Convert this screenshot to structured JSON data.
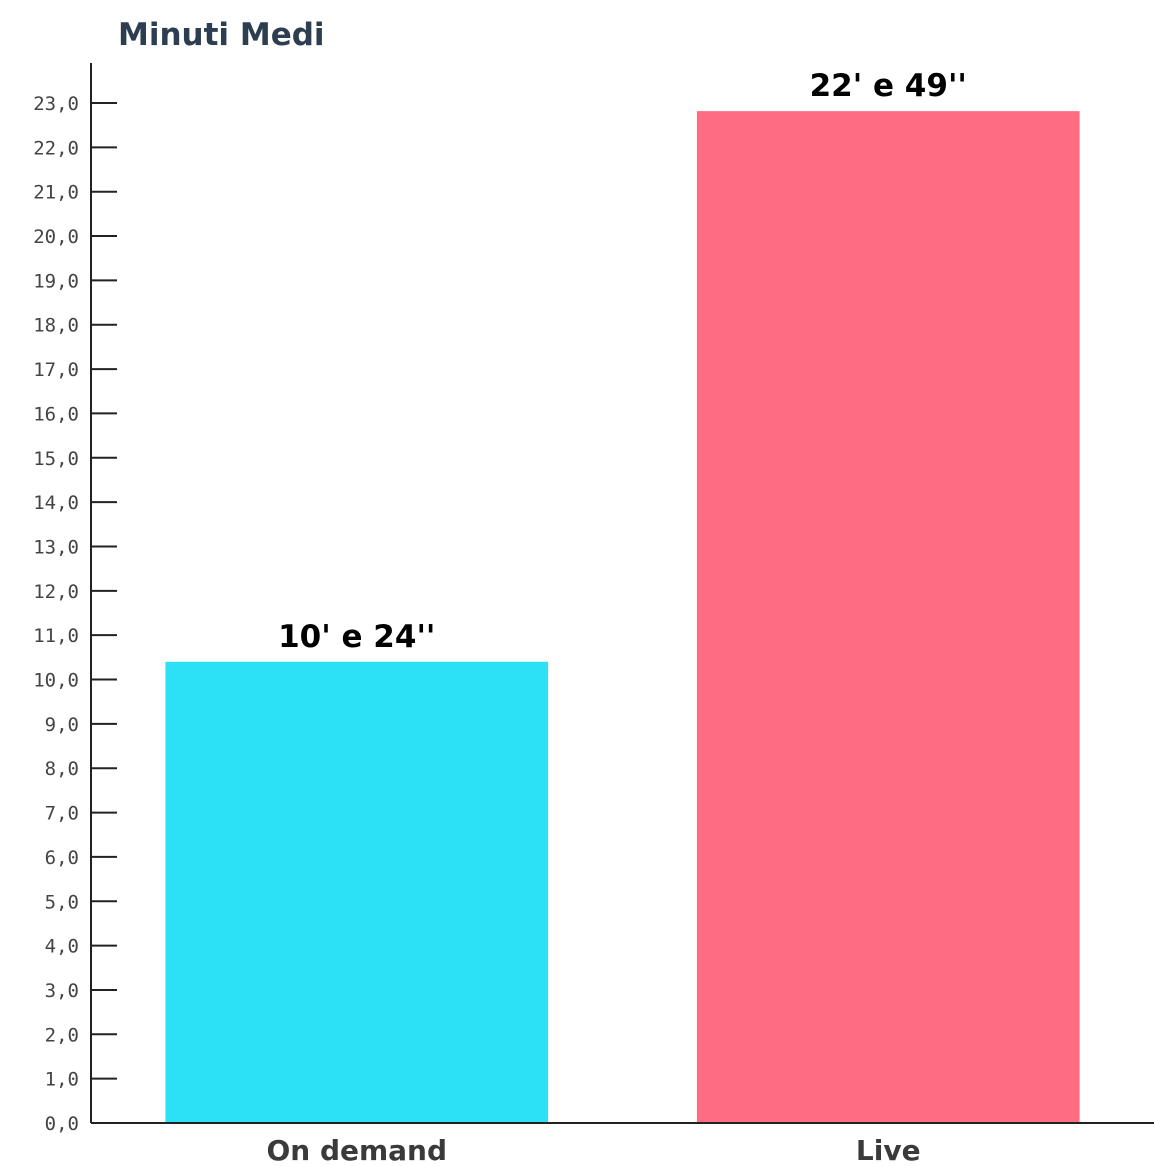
{
  "chart_data": {
    "type": "bar",
    "title": "Minuti Medi",
    "categories": [
      "On demand",
      "Live"
    ],
    "values": [
      10.4,
      22.8167
    ],
    "data_labels": [
      "10' e 24''",
      "22' e 49''"
    ],
    "colors": [
      "#2ce0f6",
      "#fe6c82"
    ],
    "ylim": [
      0,
      23
    ],
    "yticks": [
      "0,0",
      "1,0",
      "2,0",
      "3,0",
      "4,0",
      "5,0",
      "6,0",
      "7,0",
      "8,0",
      "9,0",
      "10,0",
      "11,0",
      "12,0",
      "13,0",
      "14,0",
      "15,0",
      "16,0",
      "17,0",
      "18,0",
      "19,0",
      "20,0",
      "21,0",
      "22,0",
      "23,0"
    ],
    "grid": false,
    "legend": "none"
  }
}
